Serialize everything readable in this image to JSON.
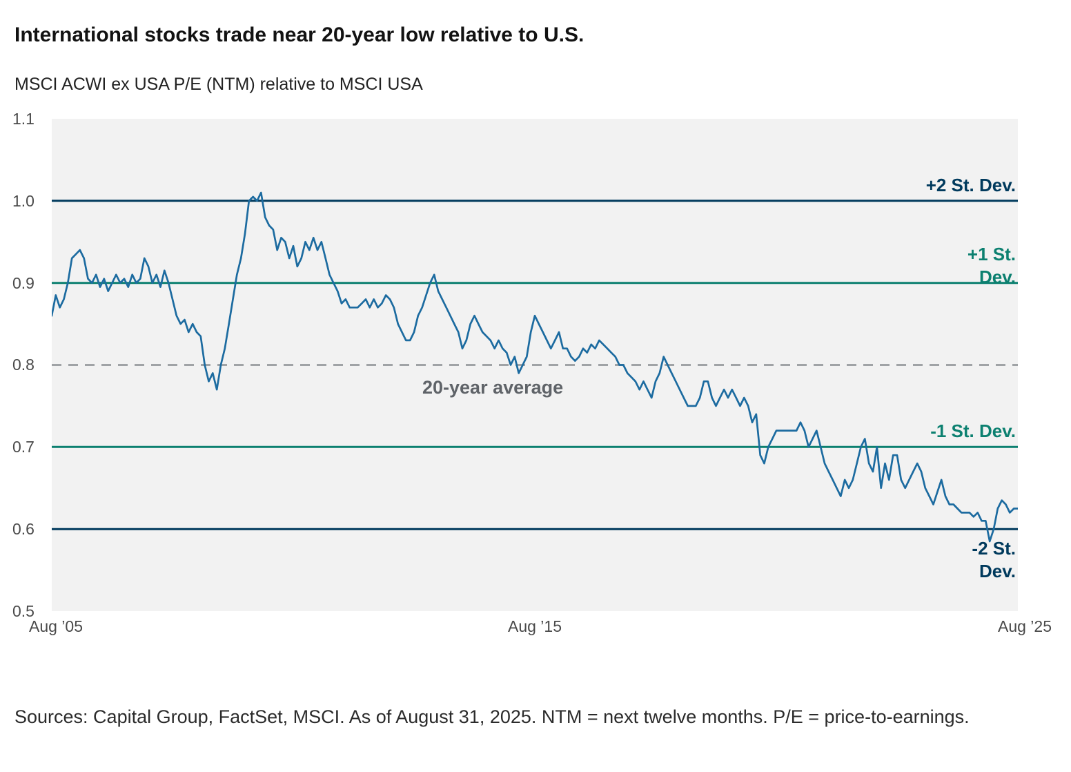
{
  "page": {
    "title": "International stocks trade near 20-year low relative to U.S."
  },
  "footer": {
    "source": "Sources: Capital Group, FactSet, MSCI. As of August 31, 2025. NTM = next twelve months. P/E = price-to-earnings."
  },
  "chart_data": {
    "type": "line",
    "title": "International stocks trade near 20-year low relative to U.S.",
    "subtitle": "MSCI ACWI ex USA P/E (NTM) relative to MSCI USA",
    "x_start": "2005-08",
    "x_end": "2025-08",
    "frequency": "monthly",
    "ylim": [
      0.5,
      1.1
    ],
    "yticks": [
      "1.1",
      "1.0",
      "0.9",
      "0.8",
      "0.7",
      "0.6",
      "0.5"
    ],
    "xticks": [
      "Aug ’05",
      "Aug ’15",
      "Aug ’25"
    ],
    "grid": false,
    "legend": "none",
    "colors": {
      "plot_bg": "#f2f2f2",
      "line": "#1c6ba0",
      "navy": "#003a5d",
      "teal": "#0c8070",
      "dash_gray": "#a0a3a6",
      "avg_label_gray": "#5f6368"
    },
    "reference_lines": [
      {
        "label": "+2 St. Dev.",
        "value": 1.0,
        "color": "#003a5d",
        "style": "solid"
      },
      {
        "label": "+1 St. Dev.",
        "value": 0.9,
        "color": "#0c8070",
        "style": "solid"
      },
      {
        "label": "20-year average",
        "value": 0.8,
        "color": "#a0a3a6",
        "style": "dashed"
      },
      {
        "label": "-1 St. Dev.",
        "value": 0.7,
        "color": "#0c8070",
        "style": "solid"
      },
      {
        "label": "-2 St. Dev.",
        "value": 0.6,
        "color": "#003a5d",
        "style": "solid"
      }
    ],
    "series": [
      {
        "name": "MSCI ACWI ex USA P/E (NTM) relative to MSCI USA",
        "color": "#1c6ba0",
        "values": [
          0.86,
          0.885,
          0.87,
          0.88,
          0.9,
          0.93,
          0.935,
          0.94,
          0.93,
          0.905,
          0.9,
          0.91,
          0.895,
          0.905,
          0.89,
          0.9,
          0.91,
          0.9,
          0.905,
          0.895,
          0.91,
          0.9,
          0.905,
          0.93,
          0.92,
          0.9,
          0.91,
          0.895,
          0.915,
          0.9,
          0.88,
          0.86,
          0.85,
          0.855,
          0.84,
          0.85,
          0.84,
          0.835,
          0.8,
          0.78,
          0.79,
          0.77,
          0.8,
          0.82,
          0.85,
          0.88,
          0.91,
          0.93,
          0.96,
          1.0,
          1.005,
          1.0,
          1.01,
          0.98,
          0.97,
          0.965,
          0.94,
          0.955,
          0.95,
          0.93,
          0.945,
          0.92,
          0.93,
          0.95,
          0.94,
          0.955,
          0.94,
          0.95,
          0.93,
          0.91,
          0.9,
          0.89,
          0.875,
          0.88,
          0.87,
          0.87,
          0.87,
          0.875,
          0.88,
          0.87,
          0.88,
          0.87,
          0.875,
          0.885,
          0.88,
          0.87,
          0.85,
          0.84,
          0.83,
          0.83,
          0.84,
          0.86,
          0.87,
          0.885,
          0.9,
          0.91,
          0.89,
          0.88,
          0.87,
          0.86,
          0.85,
          0.84,
          0.82,
          0.83,
          0.85,
          0.86,
          0.85,
          0.84,
          0.835,
          0.83,
          0.82,
          0.83,
          0.82,
          0.815,
          0.8,
          0.81,
          0.79,
          0.8,
          0.81,
          0.84,
          0.86,
          0.85,
          0.84,
          0.83,
          0.82,
          0.83,
          0.84,
          0.82,
          0.82,
          0.81,
          0.805,
          0.81,
          0.82,
          0.815,
          0.825,
          0.82,
          0.83,
          0.825,
          0.82,
          0.815,
          0.81,
          0.8,
          0.8,
          0.79,
          0.785,
          0.78,
          0.77,
          0.78,
          0.77,
          0.76,
          0.78,
          0.79,
          0.81,
          0.8,
          0.79,
          0.78,
          0.77,
          0.76,
          0.75,
          0.75,
          0.75,
          0.76,
          0.78,
          0.78,
          0.76,
          0.75,
          0.76,
          0.77,
          0.76,
          0.77,
          0.76,
          0.75,
          0.76,
          0.75,
          0.73,
          0.74,
          0.69,
          0.68,
          0.7,
          0.71,
          0.72,
          0.72,
          0.72,
          0.72,
          0.72,
          0.72,
          0.73,
          0.72,
          0.7,
          0.71,
          0.72,
          0.7,
          0.68,
          0.67,
          0.66,
          0.65,
          0.64,
          0.66,
          0.65,
          0.66,
          0.68,
          0.7,
          0.71,
          0.68,
          0.67,
          0.7,
          0.65,
          0.68,
          0.66,
          0.69,
          0.69,
          0.66,
          0.65,
          0.66,
          0.67,
          0.68,
          0.67,
          0.65,
          0.64,
          0.63,
          0.645,
          0.66,
          0.64,
          0.63,
          0.63,
          0.625,
          0.62,
          0.62,
          0.62,
          0.615,
          0.62,
          0.61,
          0.61,
          0.585,
          0.6,
          0.625,
          0.635,
          0.63,
          0.62,
          0.625,
          0.625
        ]
      }
    ]
  }
}
